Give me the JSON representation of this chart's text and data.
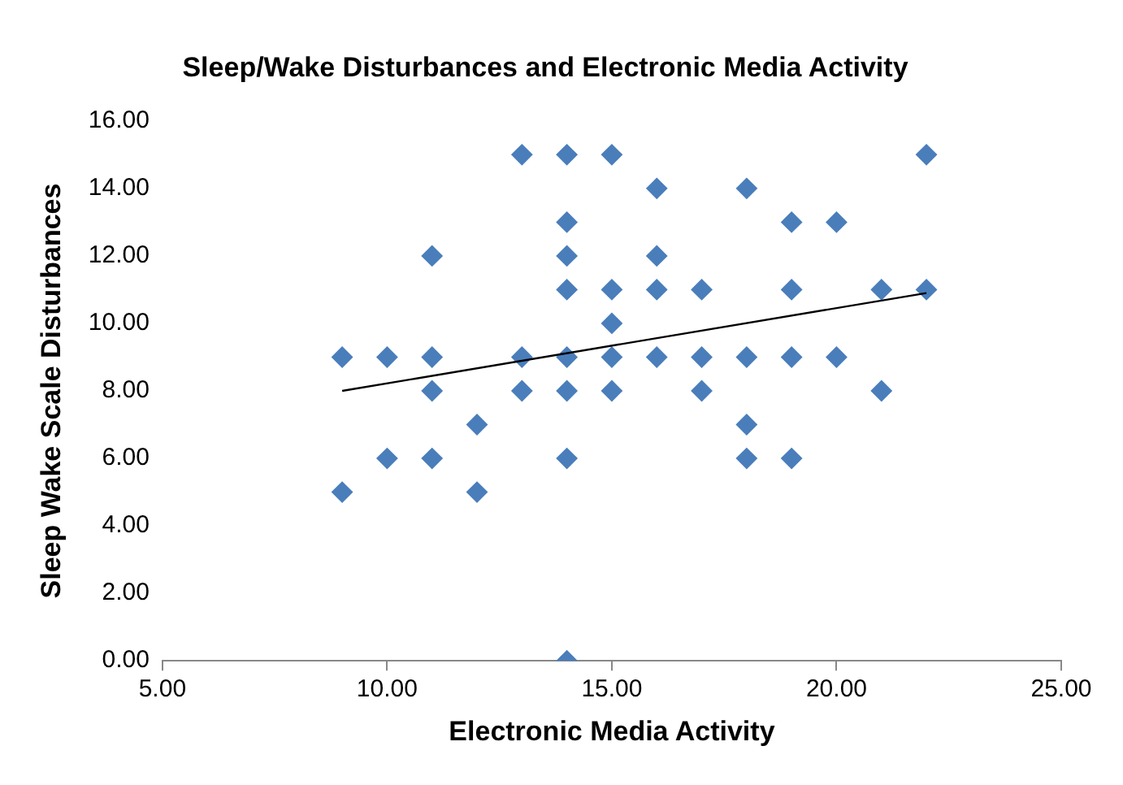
{
  "chart_data": {
    "type": "scatter",
    "title": "Sleep/Wake Disturbances and Electronic Media Activity",
    "xlabel": "Electronic Media Activity",
    "ylabel": "Sleep Wake Scale Disturbances",
    "marker": "diamond",
    "grid": false,
    "legend": false,
    "xlim": [
      5,
      25
    ],
    "xticks": [
      {
        "value": 5,
        "label": "5.00"
      },
      {
        "value": 10,
        "label": "10.00"
      },
      {
        "value": 15,
        "label": "15.00"
      },
      {
        "value": 20,
        "label": "20.00"
      },
      {
        "value": 25,
        "label": "25.00"
      }
    ],
    "ylim": [
      0,
      16
    ],
    "yticks": [
      {
        "value": 0,
        "label": "0.00"
      },
      {
        "value": 2,
        "label": "2.00"
      },
      {
        "value": 4,
        "label": "4.00"
      },
      {
        "value": 6,
        "label": "6.00"
      },
      {
        "value": 8,
        "label": "8.00"
      },
      {
        "value": 10,
        "label": "10.00"
      },
      {
        "value": 12,
        "label": "12.00"
      },
      {
        "value": 14,
        "label": "14.00"
      },
      {
        "value": 16,
        "label": "16.00"
      }
    ],
    "series": [
      {
        "type": "scatter",
        "color": "#4a7ebb",
        "x": [
          9,
          9,
          10,
          10,
          11,
          11,
          11,
          11,
          12,
          12,
          13,
          13,
          13,
          14,
          14,
          14,
          14,
          14,
          14,
          14,
          14,
          15,
          15,
          15,
          15,
          15,
          16,
          16,
          16,
          16,
          17,
          17,
          17,
          18,
          18,
          18,
          18,
          19,
          19,
          19,
          19,
          20,
          20,
          21,
          21,
          22,
          22
        ],
        "values": [
          9,
          5,
          9,
          6,
          12,
          9,
          8,
          6,
          7,
          5,
          15,
          9,
          8,
          15,
          13,
          12,
          11,
          9,
          8,
          6,
          0,
          15,
          11,
          10,
          9,
          8,
          14,
          12,
          11,
          9,
          11,
          9,
          8,
          14,
          9,
          7,
          6,
          13,
          11,
          9,
          6,
          13,
          9,
          11,
          8,
          15,
          11
        ]
      },
      {
        "type": "line",
        "color": "#000000",
        "marker": "none",
        "x": [
          9,
          22
        ],
        "values": [
          8,
          10.9
        ]
      }
    ]
  }
}
